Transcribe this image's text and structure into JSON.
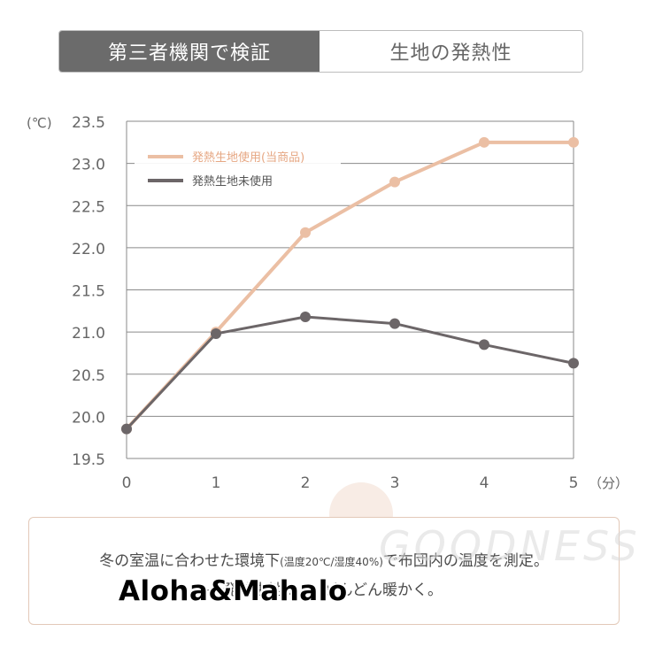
{
  "tabs": {
    "active": "第三者機関で検証",
    "inactive": "生地の発熱性"
  },
  "chart_data": {
    "type": "line",
    "x": [
      0,
      1,
      2,
      3,
      4,
      5
    ],
    "x_tick_labels": [
      "0",
      "1",
      "2",
      "3",
      "4",
      "5"
    ],
    "x_unit": "（分）",
    "y_unit": "(℃)",
    "y_tick_labels": [
      "23.5",
      "23.0",
      "22.5",
      "22.0",
      "21.5",
      "21.0",
      "20.5",
      "20.0",
      "19.5"
    ],
    "ylim": [
      19.5,
      23.5
    ],
    "xlim": [
      0,
      5
    ],
    "grid": true,
    "legend_position": "top-left",
    "series": [
      {
        "name": "発熱生地使用(当商品)",
        "color": "#ebbfa4",
        "values": [
          19.85,
          21.0,
          22.18,
          22.78,
          23.25,
          23.25
        ]
      },
      {
        "name": "発熱生地未使用",
        "color": "#6c6668",
        "values": [
          19.85,
          20.98,
          21.18,
          21.1,
          20.85,
          20.63
        ]
      }
    ]
  },
  "note": {
    "line1_a": "冬の室温に合わせた環境下",
    "line1_small": "(温度20℃/湿度40%)",
    "line1_b": "で布団内の温度を測定。",
    "line2": "→ 発熱生地 …… どんどん暖かく。"
  },
  "watermark": "GOODNESS",
  "overlay_text": "Aloha&Mahalo"
}
